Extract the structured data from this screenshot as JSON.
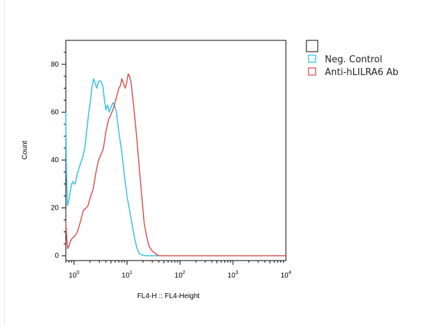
{
  "chart_data": {
    "type": "line",
    "xlabel": "FL4-H :: FL4-Height",
    "ylabel": "Count",
    "x_scale": "log",
    "xlim": [
      0.7,
      10000
    ],
    "ylim": [
      -2,
      90
    ],
    "x_ticks": [
      {
        "value": 1,
        "base": "10",
        "exp": "0"
      },
      {
        "value": 10,
        "base": "10",
        "exp": "1"
      },
      {
        "value": 100,
        "base": "10",
        "exp": "2"
      },
      {
        "value": 1000,
        "base": "10",
        "exp": "3"
      },
      {
        "value": 10000,
        "base": "10",
        "exp": "4"
      }
    ],
    "y_ticks": [
      0,
      20,
      40,
      60,
      80
    ],
    "grid": false,
    "legend_position": "top-right",
    "series": [
      {
        "name": "Neg. Control",
        "color": "#33c3dc",
        "points": [
          [
            0.7,
            60
          ],
          [
            0.72,
            35
          ],
          [
            0.75,
            21
          ],
          [
            0.8,
            23
          ],
          [
            0.85,
            27
          ],
          [
            0.9,
            30
          ],
          [
            0.95,
            31
          ],
          [
            1.0,
            30
          ],
          [
            1.05,
            30
          ],
          [
            1.15,
            34
          ],
          [
            1.3,
            38
          ],
          [
            1.45,
            41
          ],
          [
            1.6,
            45
          ],
          [
            1.75,
            53
          ],
          [
            1.9,
            60
          ],
          [
            2.05,
            65
          ],
          [
            2.2,
            71
          ],
          [
            2.35,
            74
          ],
          [
            2.5,
            72
          ],
          [
            2.7,
            70
          ],
          [
            2.9,
            73
          ],
          [
            3.2,
            73
          ],
          [
            3.5,
            71
          ],
          [
            3.75,
            65
          ],
          [
            4.0,
            61
          ],
          [
            4.3,
            63
          ],
          [
            4.6,
            60
          ],
          [
            5.0,
            62
          ],
          [
            5.4,
            64
          ],
          [
            5.8,
            63
          ],
          [
            6.3,
            60
          ],
          [
            7.0,
            52
          ],
          [
            8.0,
            43
          ],
          [
            9.0,
            33
          ],
          [
            10.0,
            25
          ],
          [
            11.0,
            20
          ],
          [
            12.5,
            13
          ],
          [
            14.0,
            7
          ],
          [
            15.5,
            3
          ],
          [
            17.0,
            1
          ],
          [
            19.0,
            0.4
          ],
          [
            22.0,
            0
          ],
          [
            30.0,
            0
          ],
          [
            100.0,
            0
          ],
          [
            1000.0,
            0
          ],
          [
            10000.0,
            0
          ]
        ]
      },
      {
        "name": "Anti-hLILRA6 Ab",
        "color": "#d9534f",
        "points": [
          [
            0.7,
            14
          ],
          [
            0.73,
            7
          ],
          [
            0.76,
            3
          ],
          [
            0.8,
            4
          ],
          [
            0.85,
            6
          ],
          [
            0.9,
            7
          ],
          [
            1.0,
            8
          ],
          [
            1.1,
            9
          ],
          [
            1.2,
            11
          ],
          [
            1.35,
            15
          ],
          [
            1.5,
            19
          ],
          [
            1.7,
            20
          ],
          [
            1.85,
            21
          ],
          [
            2.0,
            24
          ],
          [
            2.3,
            28
          ],
          [
            2.6,
            35
          ],
          [
            2.9,
            40
          ],
          [
            3.2,
            42
          ],
          [
            3.6,
            45
          ],
          [
            4.0,
            52
          ],
          [
            4.5,
            57
          ],
          [
            5.0,
            59
          ],
          [
            5.6,
            62
          ],
          [
            6.3,
            66
          ],
          [
            7.0,
            70
          ],
          [
            7.5,
            71
          ],
          [
            8.0,
            74
          ],
          [
            8.6,
            72
          ],
          [
            9.3,
            70
          ],
          [
            10.0,
            73
          ],
          [
            10.6,
            76
          ],
          [
            11.2,
            75
          ],
          [
            12.0,
            72
          ],
          [
            13.0,
            65
          ],
          [
            14.0,
            58
          ],
          [
            15.5,
            48
          ],
          [
            17.0,
            37
          ],
          [
            19.0,
            25
          ],
          [
            21.0,
            14
          ],
          [
            23.0,
            9
          ],
          [
            26.0,
            4
          ],
          [
            30.0,
            2
          ],
          [
            35.0,
            0.8
          ],
          [
            40.0,
            0
          ],
          [
            100.0,
            0
          ],
          [
            1000.0,
            0
          ],
          [
            10000.0,
            0
          ]
        ]
      }
    ]
  }
}
